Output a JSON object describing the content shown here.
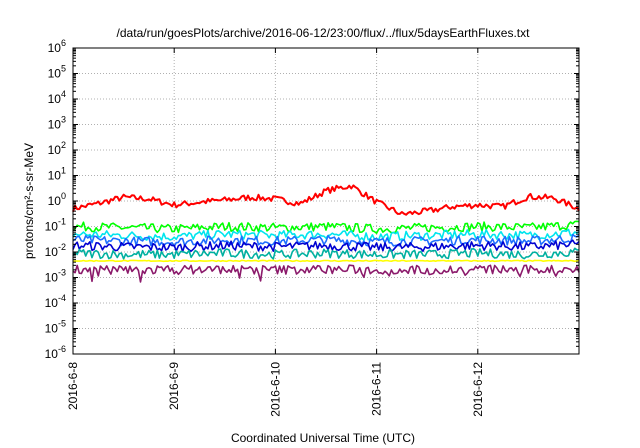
{
  "chart_data": {
    "type": "line",
    "title": "/data/run/goesPlots/archive/2016-06-12/23:00/flux/../flux/5daysEarthFluxes.txt",
    "xlabel": "Coordinated Universal Time (UTC)",
    "ylabel": "protons/cm²-s-sr-MeV",
    "y_scale": "log",
    "ylim": [
      "1e-6",
      "1e6"
    ],
    "xlim": [
      "2016-06-08",
      "2016-06-13"
    ],
    "x_ticks": [
      "2016-6-8",
      "2016-6-9",
      "2016-6-10",
      "2016-6-11",
      "2016-6-12"
    ],
    "y_ticks": [
      {
        "base": "10",
        "exp": "-6"
      },
      {
        "base": "10",
        "exp": "-5"
      },
      {
        "base": "10",
        "exp": "-4"
      },
      {
        "base": "10",
        "exp": "-3"
      },
      {
        "base": "10",
        "exp": "-2"
      },
      {
        "base": "10",
        "exp": "-1"
      },
      {
        "base": "10",
        "exp": "0"
      },
      {
        "base": "10",
        "exp": "1"
      },
      {
        "base": "10",
        "exp": "2"
      },
      {
        "base": "10",
        "exp": "3"
      },
      {
        "base": "10",
        "exp": "4"
      },
      {
        "base": "10",
        "exp": "5"
      },
      {
        "base": "10",
        "exp": "6"
      }
    ],
    "grid": true,
    "series": [
      {
        "color": "#ff0000",
        "x": [
          "2016-06-08T00:00",
          "2016-06-08T06:00",
          "2016-06-08T12:00",
          "2016-06-08T18:00",
          "2016-06-09T00:00",
          "2016-06-09T06:00",
          "2016-06-09T12:00",
          "2016-06-09T18:00",
          "2016-06-10T00:00",
          "2016-06-10T06:00",
          "2016-06-10T12:00",
          "2016-06-10T18:00",
          "2016-06-11T00:00",
          "2016-06-11T06:00",
          "2016-06-11T12:00",
          "2016-06-11T18:00",
          "2016-06-12T00:00",
          "2016-06-12T06:00",
          "2016-06-12T12:00",
          "2016-06-12T18:00",
          "2016-06-13T00:00"
        ],
        "y": [
          0.5,
          0.8,
          1.4,
          1.2,
          0.7,
          0.9,
          1.1,
          1.4,
          1.2,
          0.8,
          2.5,
          4.0,
          0.9,
          0.3,
          0.4,
          0.6,
          0.7,
          0.6,
          1.5,
          1.3,
          0.5
        ]
      },
      {
        "color": "#00ff00",
        "x": [
          "2016-06-08T00:00",
          "2016-06-08T12:00",
          "2016-06-09T00:00",
          "2016-06-09T12:00",
          "2016-06-10T00:00",
          "2016-06-10T12:00",
          "2016-06-11T00:00",
          "2016-06-11T12:00",
          "2016-06-12T00:00",
          "2016-06-12T12:00",
          "2016-06-13T00:00"
        ],
        "y": [
          0.1,
          0.09,
          0.08,
          0.1,
          0.09,
          0.1,
          0.08,
          0.09,
          0.1,
          0.09,
          0.12
        ]
      },
      {
        "color": "#00e5ee",
        "x": [
          "2016-06-08T00:00",
          "2016-06-08T12:00",
          "2016-06-09T00:00",
          "2016-06-09T12:00",
          "2016-06-10T00:00",
          "2016-06-10T12:00",
          "2016-06-11T00:00",
          "2016-06-11T12:00",
          "2016-06-12T00:00",
          "2016-06-12T12:00",
          "2016-06-13T00:00"
        ],
        "y": [
          0.05,
          0.045,
          0.04,
          0.05,
          0.045,
          0.05,
          0.04,
          0.045,
          0.05,
          0.045,
          0.06
        ]
      },
      {
        "color": "#1e6eff",
        "x": [
          "2016-06-08T00:00",
          "2016-06-08T12:00",
          "2016-06-09T00:00",
          "2016-06-09T12:00",
          "2016-06-10T00:00",
          "2016-06-10T12:00",
          "2016-06-11T00:00",
          "2016-06-11T12:00",
          "2016-06-12T00:00",
          "2016-06-12T12:00",
          "2016-06-13T00:00"
        ],
        "y": [
          0.03,
          0.027,
          0.025,
          0.03,
          0.027,
          0.03,
          0.025,
          0.027,
          0.03,
          0.027,
          0.035
        ]
      },
      {
        "color": "#0000d0",
        "x": [
          "2016-06-08T00:00",
          "2016-06-08T12:00",
          "2016-06-09T00:00",
          "2016-06-09T12:00",
          "2016-06-10T00:00",
          "2016-06-10T12:00",
          "2016-06-11T00:00",
          "2016-06-11T12:00",
          "2016-06-12T00:00",
          "2016-06-12T12:00",
          "2016-06-13T00:00"
        ],
        "y": [
          0.018,
          0.016,
          0.015,
          0.018,
          0.016,
          0.018,
          0.015,
          0.016,
          0.018,
          0.016,
          0.02
        ]
      },
      {
        "color": "#00b0a0",
        "x": [
          "2016-06-08T00:00",
          "2016-06-08T12:00",
          "2016-06-09T00:00",
          "2016-06-09T12:00",
          "2016-06-10T00:00",
          "2016-06-10T12:00",
          "2016-06-11T00:00",
          "2016-06-11T12:00",
          "2016-06-12T00:00",
          "2016-06-12T12:00",
          "2016-06-13T00:00"
        ],
        "y": [
          0.009,
          0.008,
          0.008,
          0.009,
          0.008,
          0.009,
          0.008,
          0.008,
          0.009,
          0.008,
          0.01
        ]
      },
      {
        "color": "#ffff00",
        "x": [
          "2016-06-08T00:00",
          "2016-06-08T12:00",
          "2016-06-09T00:00",
          "2016-06-09T12:00",
          "2016-06-10T00:00",
          "2016-06-10T12:00",
          "2016-06-11T00:00",
          "2016-06-11T12:00",
          "2016-06-12T00:00",
          "2016-06-12T12:00",
          "2016-06-13T00:00"
        ],
        "y": [
          0.0045,
          0.0045,
          0.0045,
          0.0045,
          0.0045,
          0.0045,
          0.0045,
          0.0045,
          0.0045,
          0.0045,
          0.0045
        ]
      },
      {
        "color": "#8b1a6b",
        "x": [
          "2016-06-08T00:00",
          "2016-06-08T12:00",
          "2016-06-09T00:00",
          "2016-06-09T12:00",
          "2016-06-10T00:00",
          "2016-06-10T12:00",
          "2016-06-11T00:00",
          "2016-06-11T12:00",
          "2016-06-12T00:00",
          "2016-06-12T12:00",
          "2016-06-13T00:00"
        ],
        "y": [
          0.0022,
          0.002,
          0.002,
          0.0021,
          0.002,
          0.0021,
          0.002,
          0.002,
          0.0021,
          0.002,
          0.0022
        ]
      }
    ]
  }
}
